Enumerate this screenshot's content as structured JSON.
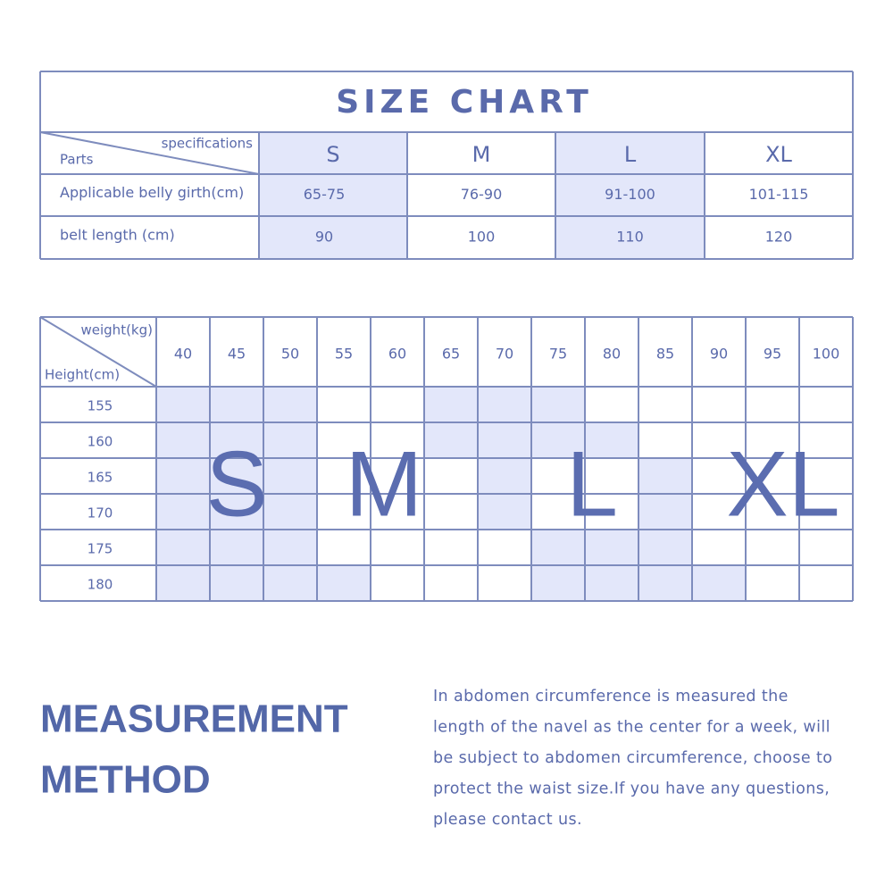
{
  "size_chart": {
    "title": "SIZE CHART",
    "corner_top": "specifications",
    "corner_bottom": "Parts",
    "sizes": [
      "S",
      "M",
      "L",
      "XL"
    ],
    "rows": [
      {
        "label": "Applicable belly girth(cm)",
        "values": [
          "65-75",
          "76-90",
          "91-100",
          "101-115"
        ]
      },
      {
        "label": "belt length (cm)",
        "values": [
          90,
          100,
          110,
          120
        ]
      }
    ]
  },
  "grid": {
    "corner_top": "weight(kg)",
    "corner_bottom": "Height(cm)",
    "weights": [
      40,
      45,
      50,
      55,
      60,
      65,
      70,
      75,
      80,
      85,
      90,
      95,
      100
    ],
    "heights": [
      155,
      160,
      165,
      170,
      175,
      180
    ],
    "size_labels": [
      "S",
      "M",
      "L",
      "XL"
    ]
  },
  "measurement": {
    "heading_lines": [
      "MEASUREMENT",
      "METHOD"
    ],
    "text_lines": [
      "In abdomen circumference is measured the",
      "length of the navel as the center for a week, will",
      "be subject to abdomen circumference, choose to",
      "protect the waist size.If you have any questions,",
      "please contact us."
    ]
  }
}
